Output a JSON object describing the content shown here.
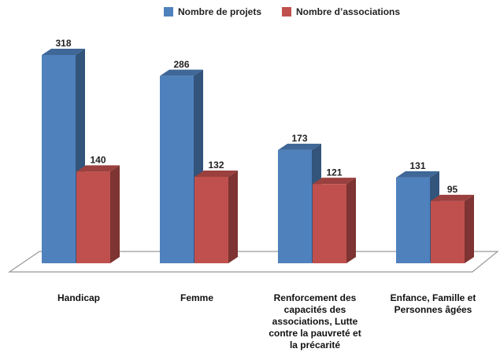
{
  "chart_data": {
    "type": "bar3d",
    "categories": [
      "Handicap",
      "Femme",
      "Renforcement des capacités des associations, Lutte contre la pauvreté et la précarité",
      "Enfance, Famille et Personnes âgées"
    ],
    "series": [
      {
        "name": "Nombre de projets",
        "color": "#4f81bd",
        "values": [
          318,
          286,
          173,
          131
        ]
      },
      {
        "name": "Nombre d’associations",
        "color": "#c0504d",
        "values": [
          140,
          132,
          121,
          95
        ]
      }
    ],
    "legend": "top"
  }
}
